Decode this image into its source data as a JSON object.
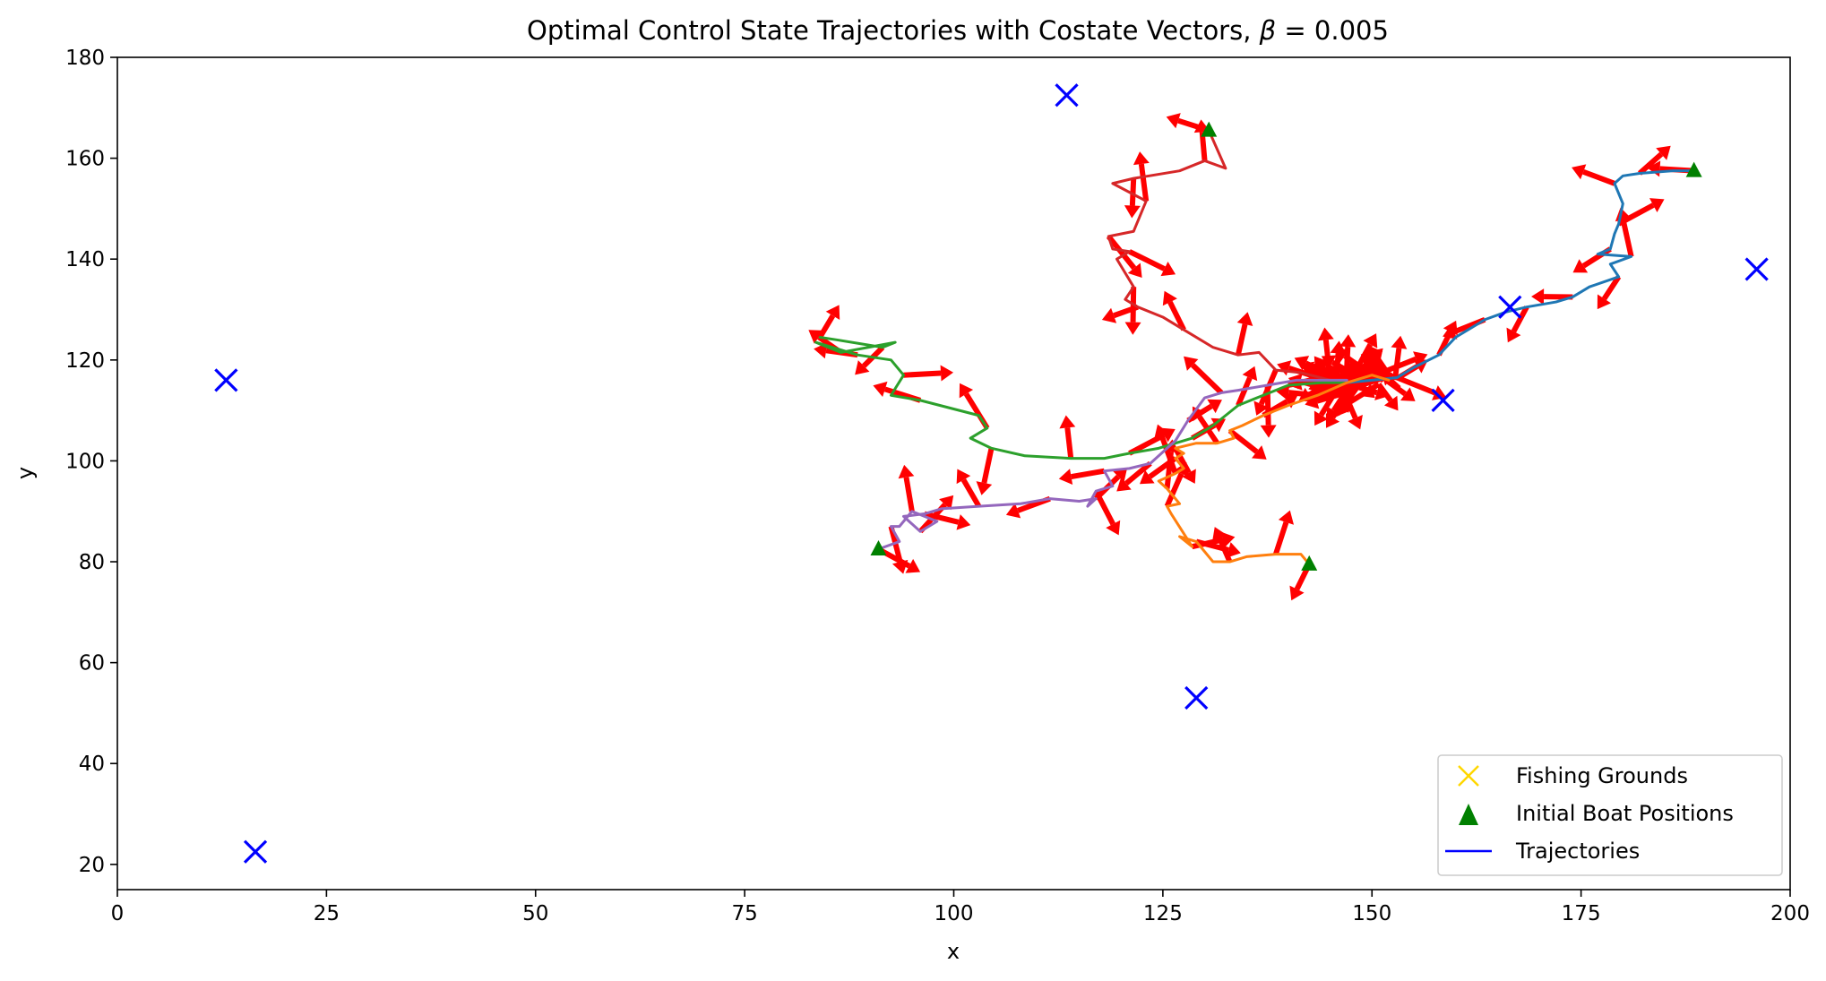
{
  "chart_data": {
    "type": "line",
    "title": "Optimal Control State Trajectories with Costate Vectors, β = 0.005",
    "title_parts": {
      "text": "Optimal Control State Trajectories with Costate Vectors, ",
      "symbol": "β",
      "value": " = 0.005"
    },
    "xlabel": "x",
    "ylabel": "y",
    "xlim": [
      0,
      200
    ],
    "ylim": [
      15,
      180
    ],
    "xticks": [
      0,
      25,
      50,
      75,
      100,
      125,
      150,
      175,
      200
    ],
    "yticks": [
      20,
      40,
      60,
      80,
      100,
      120,
      140,
      160,
      180
    ],
    "grid": false,
    "legend": {
      "placement": "lower-right",
      "entries": [
        {
          "label": "Fishing Grounds",
          "marker": "x",
          "color": "#ffd700"
        },
        {
          "label": "Initial Boat Positions",
          "marker": "triangle",
          "color": "#008000"
        },
        {
          "label": "Trajectories",
          "marker": "line",
          "color": "#0000ff"
        }
      ]
    },
    "fishing_grounds": {
      "color": "#0000ff",
      "points": [
        [
          13,
          116
        ],
        [
          16.5,
          22.5
        ],
        [
          113.5,
          172.5
        ],
        [
          129,
          53
        ],
        [
          158.5,
          112
        ],
        [
          166.5,
          130.5
        ],
        [
          196,
          138
        ]
      ]
    },
    "initial_boat_positions": {
      "color": "#008000",
      "points": [
        [
          130.5,
          165.5
        ],
        [
          188.5,
          157.5
        ],
        [
          91,
          82.5
        ],
        [
          142.5,
          79.5
        ]
      ]
    },
    "costate_vectors": {
      "color": "#ff0000"
    },
    "series": [
      {
        "color": "#1f77b4",
        "x": [
          188.5,
          186,
          182,
          180,
          179,
          180,
          179.5,
          179,
          178.5,
          177,
          181,
          178.5,
          179.5,
          176,
          174,
          172,
          168.5,
          166,
          163.5,
          160,
          158,
          155,
          153,
          150,
          147
        ],
        "y": [
          157.5,
          157.5,
          157,
          156.5,
          155,
          151,
          147,
          145,
          142,
          141,
          140.5,
          139,
          136.5,
          134.5,
          132.5,
          131.5,
          130.5,
          129.5,
          128,
          124.5,
          121,
          118.5,
          116.5,
          116,
          115.5
        ]
      },
      {
        "color": "#d62728",
        "x": [
          130.5,
          132.5,
          130,
          127,
          121.5,
          119,
          123,
          121.5,
          118.5,
          119,
          121,
          119.5,
          121.5,
          120.5,
          122,
          125,
          127.5,
          131,
          134,
          136.5,
          138.5,
          141.5,
          145,
          147
        ],
        "y": [
          165.5,
          158,
          159.5,
          157.5,
          156,
          155,
          151.5,
          145.5,
          144.5,
          142,
          141.5,
          140,
          134.5,
          132,
          130.5,
          128.5,
          126,
          122.5,
          121,
          121.5,
          118,
          117.5,
          116,
          115.5
        ]
      },
      {
        "color": "#2ca02c",
        "x": [
          84,
          86,
          91.5,
          93,
          86.5,
          83.5,
          88.5,
          92.5,
          94,
          92.5,
          96,
          103,
          104,
          102,
          104.5,
          108.5,
          114,
          118,
          121,
          124.5,
          128.5,
          131,
          134,
          137,
          140,
          144,
          147
        ],
        "y": [
          124.5,
          124,
          122.5,
          123.5,
          121.5,
          123.5,
          121,
          120,
          117,
          113,
          112,
          109,
          106.5,
          104.5,
          102.5,
          101,
          100.5,
          100.5,
          101.5,
          102.5,
          104.5,
          107,
          111,
          113,
          115,
          115.5,
          115.5
        ]
      },
      {
        "color": "#ff7f0e",
        "x": [
          142.5,
          141.5,
          138.5,
          135,
          133,
          131,
          129,
          127,
          128.5,
          126,
          125.5,
          127,
          125.5,
          124.5,
          126.5,
          127.5,
          126.5,
          127.5,
          126.5,
          129,
          131.5,
          133.5,
          133,
          134.5,
          137,
          140,
          143.5,
          147,
          150,
          152
        ],
        "y": [
          79.5,
          81.5,
          81.5,
          81,
          80,
          80,
          84,
          85,
          83,
          89.5,
          91,
          91.5,
          94.5,
          96,
          97.5,
          98.5,
          100.5,
          101.5,
          102.5,
          103.5,
          103.5,
          104.5,
          106,
          107,
          109,
          111,
          113,
          115.5,
          117,
          116
        ]
      },
      {
        "color": "#9467bd",
        "x": [
          91,
          93.5,
          92.5,
          93.5,
          95,
          98,
          96,
          94,
          96.5,
          98.5,
          103,
          108,
          111.5,
          115,
          117,
          116,
          117,
          119,
          118,
          121,
          123.5,
          126.5,
          128,
          130,
          132,
          134,
          137.5,
          141,
          144.5,
          147
        ],
        "y": [
          82.5,
          84,
          87,
          87,
          90,
          88,
          86,
          89,
          89.5,
          90.5,
          91,
          91.5,
          92.5,
          92,
          92.5,
          91,
          94,
          95,
          98,
          98.5,
          99.5,
          104,
          108,
          112.5,
          113.5,
          114,
          115,
          116,
          116,
          116
        ]
      }
    ]
  }
}
